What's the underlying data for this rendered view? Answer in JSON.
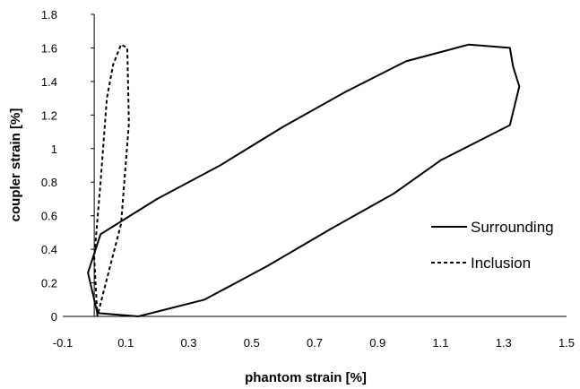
{
  "chart_data": {
    "type": "line",
    "title": "",
    "xlabel": "phantom strain [%]",
    "ylabel": "coupler strain [%]",
    "xlim": [
      -0.1,
      1.5
    ],
    "ylim": [
      0,
      1.8
    ],
    "xticks": [
      "-0.1",
      "0.1",
      "0.3",
      "0.5",
      "0.7",
      "0.9",
      "1.1",
      "1.3",
      "1.5"
    ],
    "yticks": [
      "0",
      "0.2",
      "0.4",
      "0.6",
      "0.8",
      "1",
      "1.2",
      "1.4",
      "1.6",
      "1.8"
    ],
    "grid": false,
    "legend_position": "right",
    "series": [
      {
        "name": "Surrounding",
        "style": "solid",
        "color": "#000000",
        "points": [
          [
            0.14,
            0.0
          ],
          [
            0.35,
            0.1
          ],
          [
            0.55,
            0.3
          ],
          [
            0.75,
            0.52
          ],
          [
            0.95,
            0.73
          ],
          [
            1.1,
            0.93
          ],
          [
            1.32,
            1.14
          ],
          [
            1.35,
            1.37
          ],
          [
            1.33,
            1.49
          ],
          [
            1.32,
            1.6
          ],
          [
            1.19,
            1.62
          ],
          [
            0.99,
            1.52
          ],
          [
            0.8,
            1.34
          ],
          [
            0.6,
            1.13
          ],
          [
            0.4,
            0.9
          ],
          [
            0.2,
            0.7
          ],
          [
            0.02,
            0.49
          ],
          [
            -0.02,
            0.26
          ],
          [
            0.01,
            0.02
          ],
          [
            0.14,
            0.0
          ]
        ]
      },
      {
        "name": "Inclusion",
        "style": "dashed",
        "color": "#000000",
        "points": [
          [
            0.01,
            0.0
          ],
          [
            0.0,
            0.35
          ],
          [
            0.02,
            0.8
          ],
          [
            0.04,
            1.3
          ],
          [
            0.06,
            1.5
          ],
          [
            0.085,
            1.62
          ],
          [
            0.105,
            1.6
          ],
          [
            0.11,
            1.15
          ],
          [
            0.085,
            0.55
          ],
          [
            0.03,
            0.15
          ],
          [
            0.01,
            0.0
          ]
        ]
      }
    ]
  }
}
